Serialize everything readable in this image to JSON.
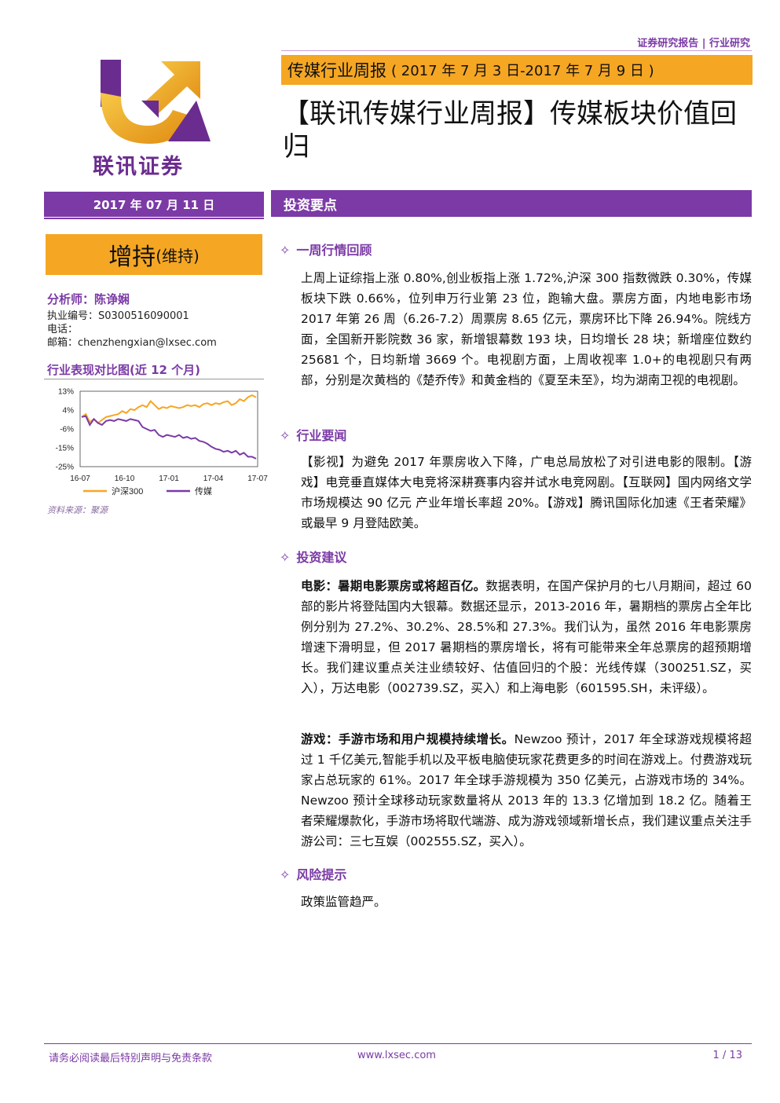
{
  "header": {
    "tag": "证券研究报告 | 行业研究",
    "logo_text": "联讯证券",
    "report_type": "传媒行业周报",
    "period": "( 2017 年 7 月 3 日-2017 年 7 月 9 日 )",
    "title": "【联讯传媒行业周报】传媒板块价值回归"
  },
  "sidebar": {
    "date": "2017 年 07 月 11 日",
    "rating_main": "增持",
    "rating_sub": "(维持)",
    "analyst": "分析师：陈诤娴",
    "license": "执业编号：S0300516090001",
    "phone": "电话：",
    "email": "邮箱：chenzhengxian@lxsec.com",
    "chart_title": "行业表现对比图(近 12 个月)",
    "source": "资料来源：聚源"
  },
  "chart_data": {
    "type": "line",
    "y_ticks": [
      "13%",
      "4%",
      "-6%",
      "-15%",
      "-25%"
    ],
    "x_ticks": [
      "16-07",
      "16-10",
      "17-01",
      "17-04",
      "17-07"
    ],
    "ylim": [
      -25,
      13
    ],
    "series": [
      {
        "name": "沪深300",
        "color": "#f5a623",
        "values": [
          0,
          1.5,
          -2.5,
          -1,
          -3,
          -1.5,
          0,
          0.5,
          1,
          1.5,
          3,
          2,
          4,
          3.5,
          5,
          6,
          5,
          8,
          6,
          4,
          5,
          4.5,
          5.5,
          5,
          4.5,
          5,
          6,
          5.5,
          6,
          5,
          6.5,
          7,
          6,
          7,
          6.5,
          7.5,
          8,
          6,
          7,
          9,
          8,
          10,
          11,
          10
        ]
      },
      {
        "name": "传媒",
        "color": "#7b3aa6",
        "values": [
          0,
          0.5,
          -4,
          -1,
          -3,
          -4,
          -2,
          -1.5,
          -2,
          -1,
          -1.5,
          -2,
          -1,
          -1.5,
          -2,
          -5,
          -6,
          -7,
          -6.5,
          -9,
          -10,
          -9,
          -9.5,
          -10,
          -9,
          -10.5,
          -10,
          -11,
          -10.5,
          -12,
          -12.5,
          -13.5,
          -15,
          -16,
          -16.5,
          -17.5,
          -17,
          -18,
          -17,
          -19,
          -18,
          -20,
          -20,
          -21
        ]
      }
    ]
  },
  "sections": {
    "intro_bar": "投资要点",
    "s1_title": "一周行情回顾",
    "s1_text": "上周上证综指上涨 0.80%,创业板指上涨 1.72%,沪深 300 指数微跌 0.30%，传媒板块下跌 0.66%，位列申万行业第 23 位，跑输大盘。票房方面，内地电影市场 2017 年第 26 周（6.26-7.2）周票房 8.65 亿元，票房环比下降 26.94%。院线方面，全国新开影院数 36 家，新增银幕数 193 块，日均增长 28 块；新增座位数约 25681 个，日均新增 3669 个。电视剧方面，上周收视率 1.0+的电视剧只有两部，分别是次黄档的《楚乔传》和黄金档的《夏至未至》，均为湖南卫视的电视剧。",
    "s2_title": "行业要闻",
    "s2_text": "【影视】为避免 2017 年票房收入下降，广电总局放松了对引进电影的限制。【游戏】电竞垂直媒体大电竞将深耕赛事内容并试水电竞网剧。【互联网】国内网络文学市场规模达 90 亿元 产业年增长率超 20%。【游戏】腾讯国际化加速《王者荣耀》或最早 9 月登陆欧美。",
    "s3_title": "投资建议",
    "s3_p1_bold": "电影：暑期电影票房或将超百亿。",
    "s3_p1_text": "数据表明，在国产保护月的七八月期间，超过 60 部的影片将登陆国内大银幕。数据还显示，2013-2016 年，暑期档的票房占全年比例分别为 27.2%、30.2%、28.5%和 27.3%。我们认为，虽然 2016 年电影票房增速下滑明显，但 2017 暑期档的票房增长，将有可能带来全年总票房的超预期增长。我们建议重点关注业绩较好、估值回归的个股：光线传媒（300251.SZ，买入），万达电影（002739.SZ，买入）和上海电影（601595.SH，未评级）。",
    "s3_p2_bold": "游戏：手游市场和用户规模持续增长。",
    "s3_p2_text": "Newzoo 预计，2017 年全球游戏规模将超过 1 千亿美元,智能手机以及平板电脑使玩家花费更多的时间在游戏上。付费游戏玩家占总玩家的 61%。2017 年全球手游规模为 350 亿美元，占游戏市场的 34%。Newzoo 预计全球移动玩家数量将从 2013 年的 13.3 亿增加到 18.2 亿。随着王者荣耀爆款化，手游市场将取代端游、成为游戏领域新增长点，我们建议重点关注手游公司：三七互娱（002555.SZ，买入）。",
    "s4_title": "风险提示",
    "s4_text": "政策监管趋严。"
  },
  "footer": {
    "disclaimer": "请务必阅读最后特别声明与免责条款",
    "website": "www.lxsec.com",
    "page": "1 / 13"
  }
}
